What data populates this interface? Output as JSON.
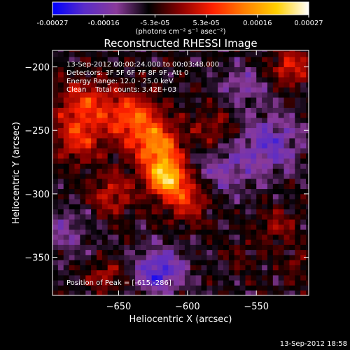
{
  "colorbar": {
    "ticks": [
      "-0.00027",
      "-0.00016",
      "-5.3e-05",
      "5.3e-05",
      "0.00016",
      "0.00027"
    ],
    "unit_label": "(photons cm⁻² s⁻¹ asec⁻²)",
    "colors": [
      "#0000ff",
      "#5a2cc8",
      "#8a3a9a",
      "#000000",
      "#8b0000",
      "#ff2000",
      "#ff8000",
      "#ffd000",
      "#ffffff"
    ]
  },
  "chart_data": {
    "type": "heatmap",
    "title": "Reconstructed RHESSI Image",
    "xlabel": "Heliocentric X (arcsec)",
    "ylabel": "Heliocentric Y (arcsec)",
    "xlim": [
      -698,
      -512
    ],
    "ylim": [
      -380,
      -187
    ],
    "xticks": [
      -650,
      -600,
      -550
    ],
    "yticks": [
      -200,
      -250,
      -300,
      -350
    ],
    "xtick_labels": [
      "−650",
      "−600",
      "−550"
    ],
    "ytick_labels": [
      "−200",
      "−250",
      "−300",
      "−350"
    ],
    "zlim": [
      -0.00027,
      0.00027
    ],
    "sources": [
      {
        "x": -615,
        "y": -286,
        "amp": 0.00027,
        "w": 10
      },
      {
        "x": -622,
        "y": -262,
        "amp": 0.00019,
        "w": 12
      },
      {
        "x": -640,
        "y": -240,
        "amp": 0.00016,
        "w": 14
      },
      {
        "x": -675,
        "y": -230,
        "amp": 0.00013,
        "w": 14
      },
      {
        "x": -680,
        "y": -258,
        "amp": 0.00011,
        "w": 12
      },
      {
        "x": -600,
        "y": -305,
        "amp": 0.00012,
        "w": 12
      },
      {
        "x": -655,
        "y": -300,
        "amp": 0.0001,
        "w": 12
      },
      {
        "x": -580,
        "y": -250,
        "amp": 8e-05,
        "w": 12
      },
      {
        "x": -525,
        "y": -200,
        "amp": 0.00012,
        "w": 10
      },
      {
        "x": -660,
        "y": -365,
        "amp": 9e-05,
        "w": 8
      },
      {
        "x": -535,
        "y": -325,
        "amp": 7e-05,
        "w": 10
      },
      {
        "x": -520,
        "y": -355,
        "amp": 5e-05,
        "w": 8
      },
      {
        "x": -560,
        "y": -350,
        "amp": 4e-05,
        "w": 8
      },
      {
        "x": -540,
        "y": -260,
        "amp": -0.00011,
        "w": 16
      },
      {
        "x": -620,
        "y": -360,
        "amp": -0.00015,
        "w": 12
      },
      {
        "x": -575,
        "y": -280,
        "amp": -8e-05,
        "w": 16
      },
      {
        "x": -690,
        "y": -330,
        "amp": -6e-05,
        "w": 14
      },
      {
        "x": -560,
        "y": -215,
        "amp": -7e-05,
        "w": 12
      }
    ],
    "annotations": {
      "line1": "13-Sep-2012 00:00:24.000 to 00:03:48.000",
      "line2": "Detectors: 3F 5F 6F 7F 8F 9F, Att 0",
      "line3": "Energy Range: 12.0 - 25.0 keV",
      "line4": "Clean    Total counts: 3.42E+03",
      "peak": "Position of Peak = [-615,-286]"
    }
  },
  "footer": {
    "timestamp": "13-Sep-2012 18:58"
  }
}
